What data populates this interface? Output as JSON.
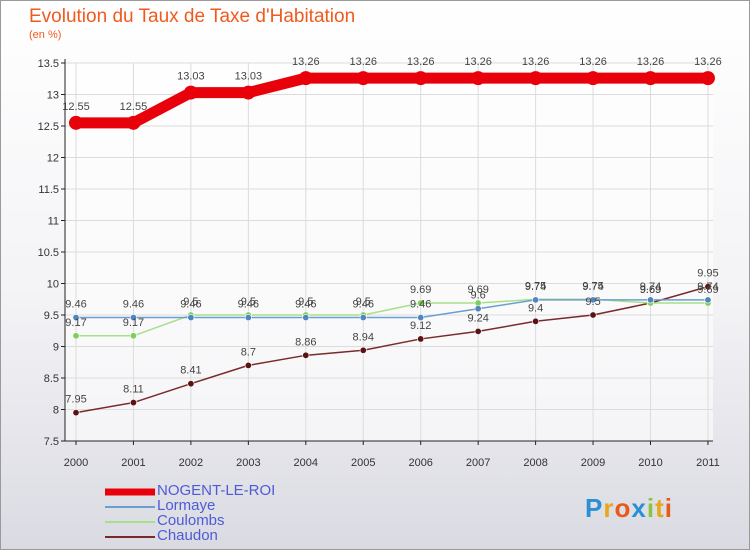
{
  "title": "Evolution du Taux de Taxe d'Habitation",
  "unit": "(en %)",
  "logo_text": "Proxiti",
  "chart_data": {
    "type": "line",
    "categories": [
      "2000",
      "2001",
      "2002",
      "2003",
      "2004",
      "2005",
      "2006",
      "2007",
      "2008",
      "2009",
      "2010",
      "2011"
    ],
    "ylim": [
      7.5,
      13.5
    ],
    "yticks": [
      7.5,
      8,
      8.5,
      9,
      9.5,
      10,
      10.5,
      11,
      11.5,
      12,
      12.5,
      13,
      13.5
    ],
    "ytick_labels": [
      "7.5",
      "8",
      "8.5",
      "9",
      "9.5",
      "10",
      "10.5",
      "11",
      "11.5",
      "12",
      "12.5",
      "13",
      "13.5"
    ],
    "series": [
      {
        "name": "NOGENT-LE-ROI",
        "color": "#e8000b",
        "bold": true,
        "values": [
          12.55,
          12.55,
          13.03,
          13.03,
          13.26,
          13.26,
          13.26,
          13.26,
          13.26,
          13.26,
          13.26,
          13.26
        ],
        "labels": [
          "12.55",
          "12.55",
          "13.03",
          "13.03",
          "13.26",
          "13.26",
          "13.26",
          "13.26",
          "13.26",
          "13.26",
          "13.26",
          "13.26"
        ]
      },
      {
        "name": "Lormaye",
        "color": "#6a9fd0",
        "marker": "#4f86c0",
        "values": [
          9.46,
          9.46,
          9.46,
          9.46,
          9.46,
          9.46,
          9.46,
          9.6,
          9.74,
          9.74,
          9.74,
          9.74
        ],
        "labels": [
          "9.46",
          "9.46",
          "9.46",
          "9.46",
          "9.46",
          "9.46",
          "9.46",
          "9.6",
          "9.74",
          "9.74",
          "9.74",
          "9.74"
        ]
      },
      {
        "name": "Coulombs",
        "color": "#a8e08a",
        "marker": "#7ccf5a",
        "values": [
          9.17,
          9.17,
          9.5,
          9.5,
          9.5,
          9.5,
          9.69,
          9.69,
          9.75,
          9.75,
          9.69,
          9.69
        ],
        "labels": [
          "9.17",
          "9.17",
          "9.5",
          "9.5",
          "9.5",
          "9.5",
          "9.69",
          "9.69",
          "9.75",
          "9.75",
          "9.69",
          "9.69"
        ]
      },
      {
        "name": "Chaudon",
        "color": "#7a2a2a",
        "marker": "#5a1212",
        "values": [
          7.95,
          8.11,
          8.41,
          8.7,
          8.86,
          8.94,
          9.12,
          9.24,
          9.4,
          9.5,
          9.69,
          9.95
        ],
        "labels": [
          "7.95",
          "8.11",
          "8.41",
          "8.7",
          "8.86",
          "8.94",
          "9.12",
          "9.24",
          "9.4",
          "9.5",
          "9.69",
          "9.95"
        ]
      }
    ]
  }
}
